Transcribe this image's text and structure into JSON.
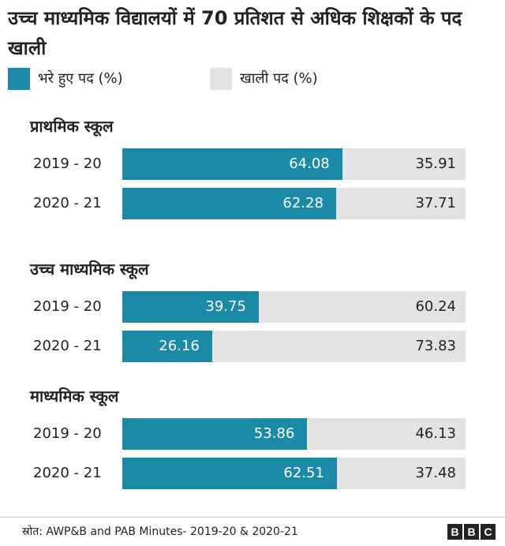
{
  "colors": {
    "filled": "#1b8aa6",
    "vacant": "#e3e3e3",
    "text": "#222222",
    "label_on_bar": "#ffffff"
  },
  "chart_data": {
    "type": "bar",
    "orientation": "horizontal",
    "stacked": true,
    "title": "उच्च माध्यमिक विद्यालयों में 70 प्रतिशत से अधिक शिक्षकों के पद खाली",
    "legend": {
      "placement": "top",
      "filled_label": "भरे हुए पद (%)",
      "vacant_label": "खाली पद (%)"
    },
    "xlim": [
      0,
      100
    ],
    "groups": [
      {
        "name": "प्राथमिक स्कूल",
        "rows": [
          {
            "year": "2019 - 20",
            "filled": 64.08,
            "vacant": 35.91
          },
          {
            "year": "2020 - 21",
            "filled": 62.28,
            "vacant": 37.71
          }
        ]
      },
      {
        "name": "उच्च माध्यमिक स्कूल",
        "rows": [
          {
            "year": "2019 - 20",
            "filled": 39.75,
            "vacant": 60.24
          },
          {
            "year": "2020 - 21",
            "filled": 26.16,
            "vacant": 73.83
          }
        ]
      },
      {
        "name": "माध्यमिक स्कूल",
        "rows": [
          {
            "year": "2019 - 20",
            "filled": 53.86,
            "vacant": 46.13
          },
          {
            "year": "2020 - 21",
            "filled": 62.51,
            "vacant": 37.48
          }
        ]
      }
    ]
  },
  "footer": {
    "source": "स्रोत: AWP&B and PAB Minutes- 2019-20 & 2020-21",
    "logo_letters": [
      "B",
      "B",
      "C"
    ]
  }
}
